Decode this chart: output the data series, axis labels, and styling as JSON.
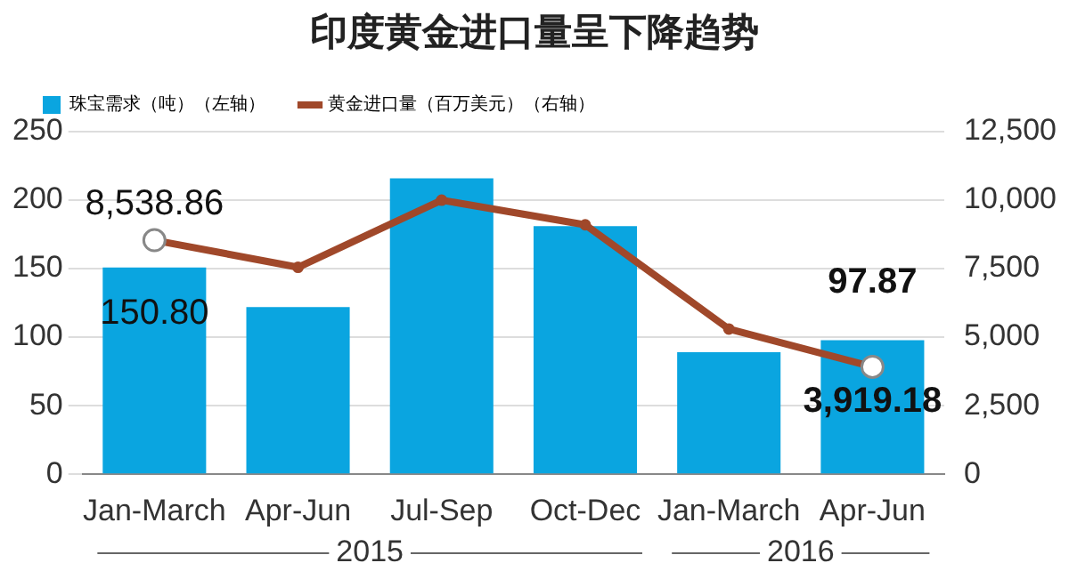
{
  "chart_data": {
    "type": "bar",
    "title": "印度黄金进口量呈下降趋势",
    "categories": [
      "Jan-March",
      "Apr-Jun",
      "Jul-Sep",
      "Oct-Dec",
      "Jan-March",
      "Apr-Jun"
    ],
    "series": [
      {
        "name": "珠宝需求（吨）（左轴）",
        "color": "#0aa5e0",
        "values": [
          150.8,
          122,
          216,
          181,
          89,
          97.87
        ],
        "value_labels": [
          "150.80",
          null,
          null,
          null,
          null,
          "97.87"
        ]
      },
      {
        "name": "黄金进口量（百万美元）（右轴）",
        "type": "line",
        "axis": "y2",
        "color": "#a0482a",
        "values": [
          8538.86,
          7550,
          10000,
          9100,
          5300,
          3919.18
        ],
        "value_labels": [
          "8,538.86",
          null,
          null,
          null,
          null,
          "3,919.18"
        ]
      }
    ],
    "ylim": [
      0,
      250
    ],
    "yticks": [
      0,
      50,
      100,
      150,
      200,
      250
    ],
    "y2lim": [
      0,
      12500
    ],
    "y2ticks": [
      0,
      {
        "value": 2500,
        "label": "2,500"
      },
      {
        "value": 5000,
        "label": "5,000"
      },
      {
        "value": 7500,
        "label": "7,500"
      },
      {
        "value": 10000,
        "label": "10,000"
      },
      {
        "value": 12500,
        "label": "12,500"
      }
    ],
    "grid": "y",
    "legend": "top",
    "marker": "circle",
    "annotations": [
      "2015",
      "2016"
    ]
  }
}
